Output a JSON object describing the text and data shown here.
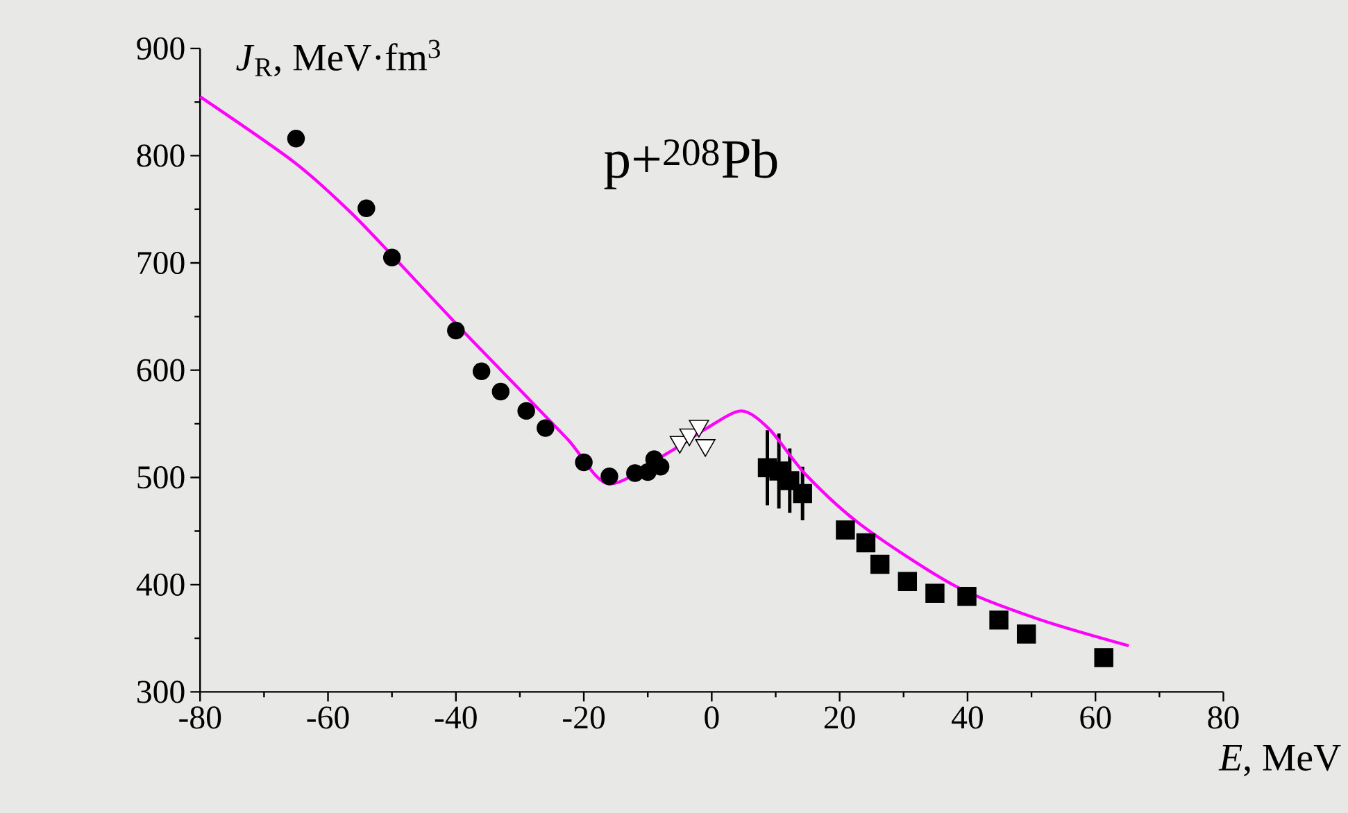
{
  "chart_data": {
    "type": "scatter",
    "title": "p+$^{208}$Pb",
    "xlabel": "*E*, MeV",
    "ylabel": "*J*$_{R}$, MeV·fm$^{3}$",
    "xlim": [
      -80,
      80
    ],
    "ylim": [
      300,
      900
    ],
    "xticks": [
      -80,
      -60,
      -40,
      -20,
      0,
      20,
      40,
      60,
      80
    ],
    "yticks": [
      300,
      400,
      500,
      600,
      700,
      800,
      900
    ],
    "series": [
      {
        "type": "scatter",
        "marker": "circle",
        "color": "#000000",
        "x": [
          -65,
          -54,
          -50,
          -40,
          -36,
          -33,
          -29,
          -26,
          -20,
          -16,
          -12,
          -10,
          -9,
          -8
        ],
        "values": [
          816,
          751,
          705,
          637,
          599,
          580,
          562,
          546,
          514,
          501,
          504,
          505,
          517,
          510
        ]
      },
      {
        "type": "scatter",
        "marker": "triangle",
        "color": "#ffffff",
        "x": [
          -5,
          -3.5,
          -2,
          -1
        ],
        "values": [
          533,
          540,
          548,
          530
        ]
      },
      {
        "type": "scatter",
        "marker": "square",
        "color": "#000000",
        "x": [
          8.7,
          10.5,
          12.2,
          14.2,
          20.9,
          24.1,
          26.3,
          30.6,
          34.9,
          39.9,
          44.9,
          49.2,
          61.3
        ],
        "values": [
          509,
          506,
          497,
          485,
          451,
          439,
          419,
          403,
          392,
          389,
          367,
          354,
          332
        ],
        "errors": [
          35,
          35,
          30,
          25,
          null,
          null,
          null,
          null,
          null,
          null,
          null,
          null,
          null
        ]
      },
      {
        "type": "line",
        "marker": "none",
        "color": "#ff00ff",
        "x": [
          -80,
          -65.3,
          -56.6,
          -49.5,
          -39.3,
          -32.8,
          -22.6,
          -16.1,
          -6.8,
          -1,
          4.6,
          9,
          14.8,
          23.5,
          38,
          51,
          65.2
        ],
        "values": [
          855,
          794,
          748,
          704,
          639,
          599,
          536,
          494,
          523,
          545,
          562,
          545,
          502,
          455,
          399,
          368,
          343
        ]
      }
    ]
  }
}
